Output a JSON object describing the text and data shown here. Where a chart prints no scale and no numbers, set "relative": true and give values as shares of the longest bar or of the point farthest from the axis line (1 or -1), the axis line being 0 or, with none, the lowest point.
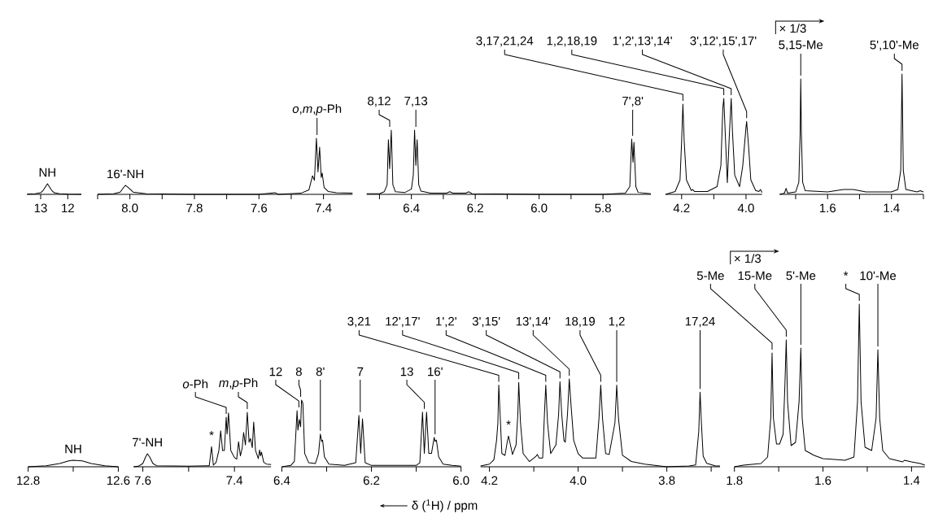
{
  "chart_data": [
    {
      "type": "line",
      "relative": true,
      "color": "#000000",
      "xlim": [
        13.5,
        11.5
      ],
      "xticks": [
        13,
        12
      ],
      "x": [
        13.5,
        13.2,
        13.0,
        12.9,
        12.8,
        12.75,
        12.7,
        12.6,
        12.5,
        12.3,
        12.0,
        11.5
      ],
      "values": [
        0.02,
        0.05,
        0.15,
        0.4,
        0.8,
        1.0,
        0.8,
        0.4,
        0.15,
        0.05,
        0.02,
        0.0
      ],
      "annotations": [
        {
          "text": "NH",
          "x": 12.75,
          "y": 1.0
        }
      ]
    },
    {
      "type": "line",
      "relative": true,
      "color": "#000000",
      "xlim": [
        8.1,
        7.31
      ],
      "xticks": [
        {
          "value": 8.1,
          "label": null
        },
        {
          "value": 8.0,
          "label": "8.0"
        },
        {
          "value": 7.9,
          "label": null
        },
        {
          "value": 7.8,
          "label": "7.8"
        },
        {
          "value": 7.7,
          "label": null
        },
        {
          "value": 7.6,
          "label": "7.6"
        },
        {
          "value": 7.5,
          "label": null
        },
        {
          "value": 7.4,
          "label": "7.4"
        }
      ],
      "x": [
        8.1,
        8.05,
        8.03,
        8.02,
        8.014,
        8.005,
        7.99,
        7.95,
        7.8,
        7.6,
        7.55,
        7.54,
        7.47,
        7.445,
        7.434,
        7.428,
        7.422,
        7.417,
        7.412,
        7.407,
        7.404,
        7.398,
        7.385,
        7.36,
        7.31
      ],
      "values": [
        0.0,
        0.01,
        0.04,
        0.12,
        0.16,
        0.12,
        0.04,
        0.01,
        0.0,
        0.0,
        0.03,
        0.0,
        0.02,
        0.08,
        0.33,
        0.25,
        1.0,
        0.4,
        0.84,
        0.3,
        0.38,
        0.12,
        0.05,
        0.03,
        0.02
      ],
      "annotations": [
        {
          "text": "16'-NH",
          "x": 8.014,
          "y": 0.16
        },
        {
          "text": "*o*,*m*,*p*-Ph",
          "x": 7.42,
          "y": 1.0
        }
      ]
    },
    {
      "type": "line",
      "relative": true,
      "color": "#000000",
      "xlim": [
        6.54,
        5.65
      ],
      "xticks": [
        {
          "value": 6.5,
          "label": null
        },
        {
          "value": 6.4,
          "label": "6.4"
        },
        {
          "value": 6.3,
          "label": null
        },
        {
          "value": 6.2,
          "label": "6.2"
        },
        {
          "value": 6.1,
          "label": null
        },
        {
          "value": 6.0,
          "label": "6.0"
        },
        {
          "value": 5.9,
          "label": null
        },
        {
          "value": 5.8,
          "label": "5.8"
        }
      ],
      "x": [
        6.54,
        6.5,
        6.485,
        6.476,
        6.472,
        6.468,
        6.463,
        6.458,
        6.45,
        6.42,
        6.4,
        6.394,
        6.39,
        6.386,
        6.382,
        6.377,
        6.37,
        6.34,
        6.29,
        6.28,
        6.27,
        6.23,
        6.22,
        6.21,
        6.0,
        5.8,
        5.73,
        5.716,
        5.71,
        5.706,
        5.703,
        5.697,
        5.69,
        5.65
      ],
      "values": [
        0.01,
        0.01,
        0.04,
        0.15,
        0.85,
        0.4,
        1.0,
        0.15,
        0.04,
        0.03,
        0.08,
        0.3,
        1.0,
        0.45,
        0.85,
        0.15,
        0.05,
        0.02,
        0.02,
        0.04,
        0.02,
        0.02,
        0.04,
        0.01,
        0.0,
        0.0,
        0.02,
        0.12,
        0.86,
        0.5,
        0.81,
        0.12,
        0.03,
        0.01
      ],
      "annotations": [
        {
          "text": "8,12",
          "x": 6.468,
          "y": 1.0
        },
        {
          "text": "7,13",
          "x": 6.386,
          "y": 1.0
        },
        {
          "text": "7',8'",
          "x": 5.707,
          "y": 0.86
        }
      ]
    },
    {
      "type": "line",
      "relative": true,
      "color": "#000000",
      "xlim": [
        4.25,
        3.95
      ],
      "xticks": [
        {
          "value": 4.2,
          "label": "4.2"
        },
        {
          "value": 4.1,
          "label": null
        },
        {
          "value": 4.0,
          "label": "4.0"
        }
      ],
      "x": [
        4.25,
        4.22,
        4.205,
        4.2,
        4.196,
        4.192,
        4.185,
        4.17,
        4.165,
        4.16,
        4.12,
        4.09,
        4.078,
        4.072,
        4.069,
        4.064,
        4.058,
        4.052,
        4.046,
        4.042,
        4.035,
        4.02,
        4.01,
        4.0,
        3.998,
        3.992,
        3.985,
        3.97,
        3.96,
        3.955,
        3.95
      ],
      "values": [
        0.0,
        0.03,
        0.15,
        0.55,
        0.94,
        0.55,
        0.15,
        0.04,
        0.05,
        0.03,
        0.03,
        0.08,
        0.3,
        0.9,
        1.0,
        0.6,
        0.12,
        0.6,
        1.0,
        0.65,
        0.2,
        0.08,
        0.3,
        0.7,
        0.76,
        0.5,
        0.15,
        0.04,
        0.03,
        0.05,
        0.02
      ],
      "annotations": [
        {
          "text": "3,17,21,24",
          "x": 4.196,
          "y": 0.94
        },
        {
          "text": "1,2,18,19",
          "x": 4.069,
          "y": 1.0
        },
        {
          "text": "1',2',13',14'",
          "x": 4.046,
          "y": 1.0
        },
        {
          "text": "3',12',15',17'",
          "x": 3.998,
          "y": 0.76
        }
      ]
    },
    {
      "type": "line",
      "relative": true,
      "color": "#000000",
      "xlim": [
        1.75,
        1.3
      ],
      "xticks": [
        {
          "value": 1.7,
          "label": null
        },
        {
          "value": 1.6,
          "label": "1.6"
        },
        {
          "value": 1.5,
          "label": null
        },
        {
          "value": 1.4,
          "label": "1.4"
        },
        {
          "value": 1.3,
          "label": null
        }
      ],
      "x": [
        1.75,
        1.735,
        1.73,
        1.725,
        1.7,
        1.69,
        1.686,
        1.684,
        1.682,
        1.678,
        1.67,
        1.6,
        1.55,
        1.52,
        1.48,
        1.4,
        1.38,
        1.371,
        1.367,
        1.363,
        1.355,
        1.32,
        1.31,
        1.3
      ],
      "values": [
        0.0,
        0.01,
        0.05,
        0.01,
        0.02,
        0.1,
        0.5,
        0.96,
        0.5,
        0.1,
        0.03,
        0.02,
        0.04,
        0.04,
        0.02,
        0.02,
        0.04,
        0.2,
        1.0,
        0.2,
        0.04,
        0.02,
        0.03,
        0.02
      ],
      "annotations": [
        "× 1/3",
        {
          "text": "5,15-Me",
          "x": 1.684,
          "y": 0.96
        },
        {
          "text": "5',10'-Me",
          "x": 1.367,
          "y": 1.0
        }
      ]
    },
    {
      "type": "line",
      "relative": true,
      "color": "#000000",
      "xlim": [
        12.8,
        12.6
      ],
      "xticks": [
        {
          "value": 12.8,
          "label": "12.8"
        },
        {
          "value": 12.7,
          "label": null
        },
        {
          "value": 12.6,
          "label": "12.6"
        }
      ],
      "x": [
        12.8,
        12.76,
        12.73,
        12.71,
        12.7,
        12.68,
        12.66,
        12.63,
        12.6
      ],
      "values": [
        0.0,
        0.15,
        0.5,
        0.9,
        1.0,
        0.9,
        0.5,
        0.15,
        0.0
      ],
      "annotations": [
        {
          "text": "NH",
          "x": 12.7,
          "y": 1.0
        }
      ]
    },
    {
      "type": "line",
      "relative": true,
      "color": "#000000",
      "xlim": [
        7.62,
        7.32
      ],
      "xticks": [
        {
          "value": 7.6,
          "label": "7.6"
        },
        {
          "value": 7.5,
          "label": null
        },
        {
          "value": 7.4,
          "label": "7.4"
        }
      ],
      "x": [
        7.62,
        7.61,
        7.6,
        7.594,
        7.59,
        7.585,
        7.578,
        7.57,
        7.5,
        7.455,
        7.45,
        7.446,
        7.44,
        7.434,
        7.43,
        7.426,
        7.422,
        7.418,
        7.416,
        7.413,
        7.408,
        7.4,
        7.395,
        7.391,
        7.387,
        7.383,
        7.38,
        7.376,
        7.372,
        7.368,
        7.365,
        7.361,
        7.358,
        7.354,
        7.348,
        7.345,
        7.343,
        7.341,
        7.336,
        7.33,
        7.32
      ],
      "values": [
        0.0,
        0.01,
        0.06,
        0.18,
        0.24,
        0.18,
        0.06,
        0.02,
        0.01,
        0.02,
        0.37,
        0.03,
        0.08,
        0.3,
        0.66,
        0.3,
        0.3,
        0.91,
        0.6,
        0.99,
        0.3,
        0.17,
        0.14,
        0.46,
        0.2,
        0.35,
        0.63,
        0.4,
        1.0,
        0.45,
        0.52,
        0.35,
        0.82,
        0.3,
        0.15,
        0.31,
        0.2,
        0.27,
        0.08,
        0.05,
        0.04
      ],
      "annotations": [
        {
          "text": "7'-NH",
          "x": 7.59,
          "y": 0.24
        },
        {
          "text": "*",
          "x": 7.45,
          "y": 0.37
        },
        {
          "text": "*o*-Ph",
          "x": 7.418,
          "y": 0.91
        },
        {
          "text": "*m*,*p*-Ph",
          "x": 7.372,
          "y": 1.0
        }
      ]
    },
    {
      "type": "line",
      "relative": true,
      "color": "#000000",
      "xlim": [
        6.4,
        6.0
      ],
      "xlabel": "δ ($^{1}$H) / ppm",
      "xticks": [
        {
          "value": 6.4,
          "label": "6.4"
        },
        {
          "value": 6.3,
          "label": null
        },
        {
          "value": 6.2,
          "label": "6.2"
        },
        {
          "value": 6.1,
          "label": null
        },
        {
          "value": 6.0,
          "label": "6.0"
        }
      ],
      "x": [
        6.4,
        6.38,
        6.372,
        6.366,
        6.364,
        6.361,
        6.358,
        6.356,
        6.353,
        6.349,
        6.34,
        6.325,
        6.318,
        6.314,
        6.311,
        6.309,
        6.305,
        6.295,
        6.26,
        6.235,
        6.228,
        6.224,
        6.22,
        6.214,
        6.2,
        6.1,
        6.092,
        6.086,
        6.082,
        6.077,
        6.072,
        6.066,
        6.06,
        6.058,
        6.055,
        6.05,
        6.04,
        6.02,
        6.0
      ],
      "values": [
        0.0,
        0.02,
        0.08,
        0.84,
        0.55,
        0.71,
        0.6,
        1.0,
        0.95,
        0.2,
        0.06,
        0.05,
        0.2,
        0.49,
        0.38,
        0.4,
        0.15,
        0.04,
        0.02,
        0.06,
        0.77,
        0.2,
        0.72,
        0.06,
        0.02,
        0.02,
        0.06,
        0.82,
        0.2,
        0.82,
        0.2,
        0.2,
        0.44,
        0.38,
        0.4,
        0.15,
        0.04,
        0.02,
        0.01
      ],
      "annotations": [
        {
          "text": "12",
          "x": 6.362,
          "y": 0.84
        },
        {
          "text": "8",
          "x": 6.358,
          "y": 1.0
        },
        {
          "text": "8'",
          "x": 6.314,
          "y": 0.49
        },
        {
          "text": "7",
          "x": 6.225,
          "y": 0.77
        },
        {
          "text": "13",
          "x": 6.082,
          "y": 0.82
        },
        {
          "text": "16'",
          "x": 6.058,
          "y": 0.44
        }
      ]
    },
    {
      "type": "line",
      "relative": true,
      "color": "#000000",
      "xlim": [
        4.22,
        3.68
      ],
      "xticks": [
        {
          "value": 4.2,
          "label": "4.2"
        },
        {
          "value": 4.1,
          "label": null
        },
        {
          "value": 4.0,
          "label": "4.0"
        },
        {
          "value": 3.9,
          "label": null
        },
        {
          "value": 3.8,
          "label": "3.8"
        },
        {
          "value": 3.7,
          "label": null
        }
      ],
      "x": [
        4.22,
        4.2,
        4.19,
        4.184,
        4.181,
        4.179,
        4.176,
        4.172,
        4.165,
        4.16,
        4.157,
        4.154,
        4.148,
        4.14,
        4.136,
        4.134,
        4.13,
        4.124,
        4.11,
        4.095,
        4.092,
        4.088,
        4.08,
        4.076,
        4.073,
        4.069,
        4.062,
        4.05,
        4.044,
        4.041,
        4.037,
        4.032,
        4.029,
        4.024,
        4.02,
        4.016,
        4.01,
        4.0,
        3.99,
        3.96,
        3.953,
        3.949,
        3.945,
        3.938,
        3.93,
        3.917,
        3.913,
        3.909,
        3.9,
        3.88,
        3.85,
        3.8,
        3.75,
        3.735,
        3.728,
        3.725,
        3.722,
        3.718,
        3.71,
        3.69,
        3.68
      ],
      "values": [
        0.01,
        0.03,
        0.08,
        0.3,
        0.5,
        0.93,
        0.6,
        0.15,
        0.13,
        0.28,
        0.35,
        0.28,
        0.14,
        0.25,
        0.6,
        0.96,
        0.5,
        0.15,
        0.06,
        0.12,
        0.14,
        0.1,
        0.1,
        0.6,
        0.93,
        0.5,
        0.15,
        0.25,
        0.6,
        0.97,
        0.6,
        0.3,
        0.28,
        0.6,
        1.0,
        0.7,
        0.3,
        0.15,
        0.1,
        0.1,
        0.55,
        0.93,
        0.55,
        0.15,
        0.14,
        0.5,
        0.93,
        0.55,
        0.13,
        0.06,
        0.03,
        0.0,
        0.01,
        0.02,
        0.4,
        0.85,
        0.5,
        0.12,
        0.04,
        0.01,
        0.01
      ],
      "annotations": [
        {
          "text": "3,21",
          "x": 4.179,
          "y": 0.93
        },
        {
          "text": "*",
          "x": 4.157,
          "y": 0.35
        },
        {
          "text": "12',17'",
          "x": 4.134,
          "y": 0.96
        },
        {
          "text": "1',2'",
          "x": 4.073,
          "y": 0.93
        },
        {
          "text": "3',15'",
          "x": 4.041,
          "y": 0.97
        },
        {
          "text": "13',14'",
          "x": 4.02,
          "y": 1.0
        },
        {
          "text": "18,19",
          "x": 3.949,
          "y": 0.93
        },
        {
          "text": "1,2",
          "x": 3.913,
          "y": 0.93
        },
        {
          "text": "17,24",
          "x": 3.725,
          "y": 0.85
        }
      ]
    },
    {
      "type": "line",
      "relative": true,
      "color": "#000000",
      "xlim": [
        1.8,
        1.37
      ],
      "xticks": [
        {
          "value": 1.8,
          "label": "1.8"
        },
        {
          "value": 1.7,
          "label": null
        },
        {
          "value": 1.6,
          "label": "1.6"
        },
        {
          "value": 1.5,
          "label": null
        },
        {
          "value": 1.4,
          "label": "1.4"
        }
      ],
      "x": [
        1.8,
        1.78,
        1.74,
        1.725,
        1.718,
        1.715,
        1.712,
        1.705,
        1.698,
        1.69,
        1.686,
        1.683,
        1.68,
        1.672,
        1.662,
        1.654,
        1.65,
        1.647,
        1.64,
        1.62,
        1.6,
        1.55,
        1.53,
        1.522,
        1.518,
        1.514,
        1.505,
        1.49,
        1.48,
        1.476,
        1.472,
        1.465,
        1.45,
        1.42,
        1.416,
        1.4,
        1.38,
        1.37
      ],
      "values": [
        0.0,
        0.01,
        0.02,
        0.06,
        0.3,
        0.7,
        0.3,
        0.14,
        0.14,
        0.2,
        0.5,
        0.78,
        0.4,
        0.13,
        0.15,
        0.4,
        0.73,
        0.3,
        0.1,
        0.07,
        0.05,
        0.04,
        0.06,
        0.4,
        1.0,
        0.4,
        0.12,
        0.1,
        0.3,
        0.72,
        0.3,
        0.1,
        0.05,
        0.03,
        0.04,
        0.03,
        0.02,
        0.01
      ],
      "annotations": [
        "× 1/3",
        {
          "text": "5-Me",
          "x": 1.715,
          "y": 0.7
        },
        {
          "text": "15-Me",
          "x": 1.683,
          "y": 0.78
        },
        {
          "text": "5'-Me",
          "x": 1.65,
          "y": 0.73
        },
        {
          "text": "*",
          "x": 1.518,
          "y": 1.0
        },
        {
          "text": "10'-Me",
          "x": 1.476,
          "y": 0.72
        }
      ]
    }
  ]
}
